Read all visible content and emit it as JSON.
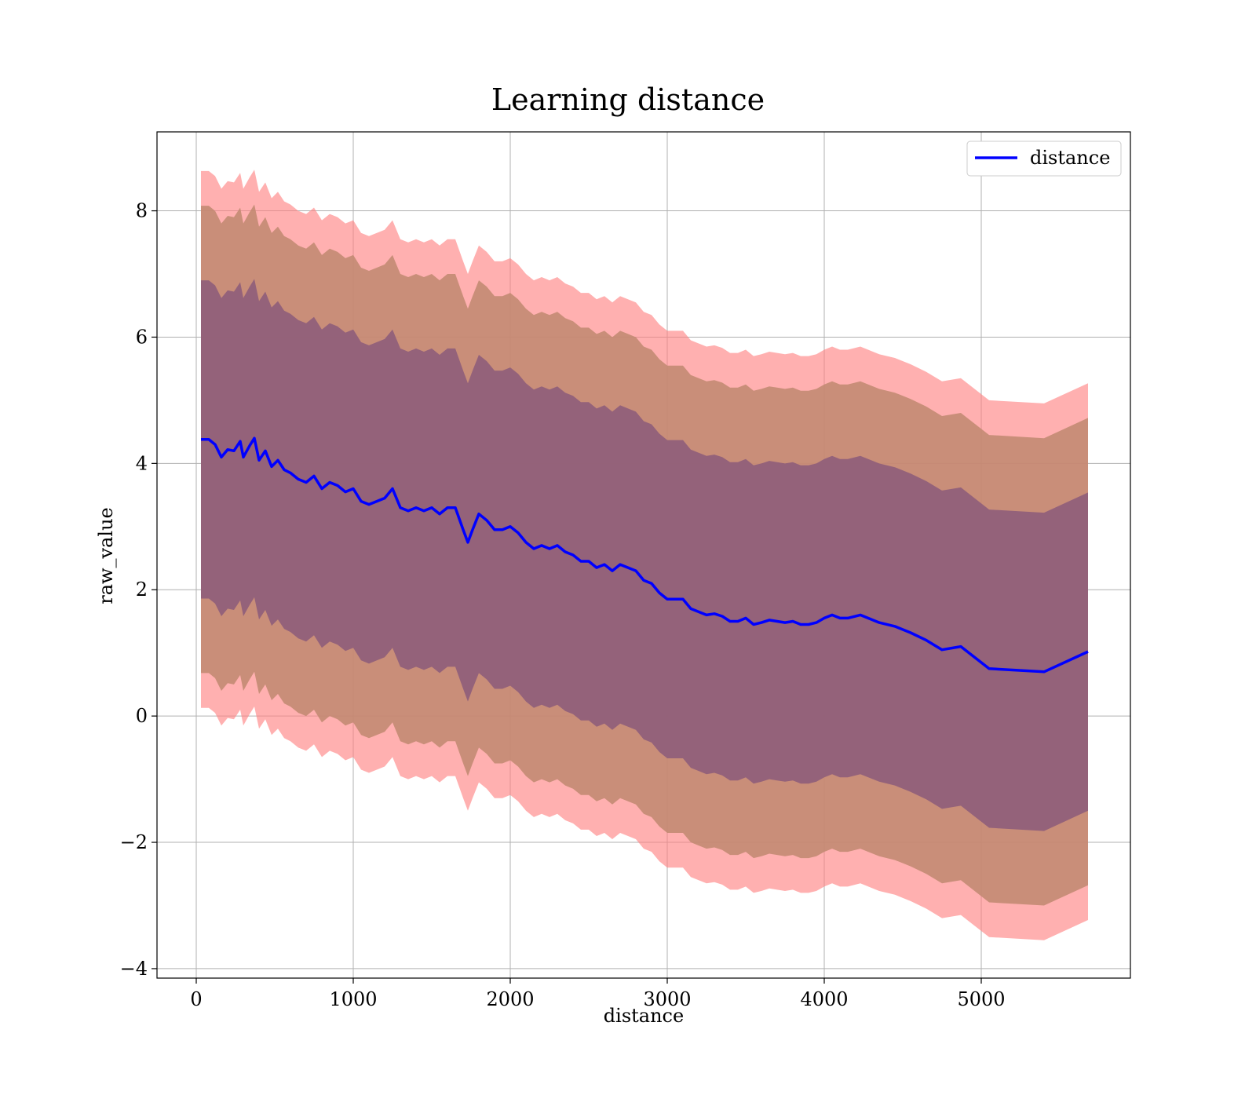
{
  "chart_data": {
    "type": "line",
    "title": "Learning distance",
    "xlabel": "distance",
    "ylabel": "raw_value",
    "xlim": [
      -250,
      5950
    ],
    "ylim": [
      -4.15,
      9.25
    ],
    "x_ticks": [
      0,
      1000,
      2000,
      3000,
      4000,
      5000
    ],
    "y_ticks": [
      -4,
      -2,
      0,
      2,
      4,
      6,
      8
    ],
    "y_tick_labels": [
      "−4",
      "−2",
      "0",
      "2",
      "4",
      "6",
      "8"
    ],
    "grid": true,
    "legend_position": "top-right",
    "series": [
      {
        "name": "distance",
        "color": "#0000ff",
        "x": [
          30,
          80,
          120,
          160,
          200,
          240,
          280,
          300,
          340,
          370,
          400,
          440,
          480,
          520,
          560,
          600,
          650,
          700,
          750,
          800,
          850,
          900,
          950,
          1000,
          1050,
          1100,
          1150,
          1200,
          1250,
          1300,
          1350,
          1400,
          1450,
          1500,
          1550,
          1600,
          1650,
          1700,
          1730,
          1760,
          1800,
          1850,
          1900,
          1950,
          2000,
          2050,
          2100,
          2150,
          2200,
          2250,
          2300,
          2350,
          2400,
          2450,
          2500,
          2550,
          2600,
          2650,
          2700,
          2750,
          2800,
          2850,
          2900,
          2950,
          3000,
          3050,
          3100,
          3150,
          3200,
          3250,
          3300,
          3350,
          3400,
          3450,
          3500,
          3550,
          3600,
          3650,
          3700,
          3750,
          3800,
          3850,
          3900,
          3950,
          4000,
          4050,
          4100,
          4150,
          4230,
          4350,
          4450,
          4550,
          4650,
          4750,
          4870,
          5050,
          5400,
          5680
        ]
      }
    ],
    "mean": [
      4.38,
      4.38,
      4.3,
      4.1,
      4.22,
      4.2,
      4.35,
      4.1,
      4.28,
      4.4,
      4.05,
      4.2,
      3.95,
      4.05,
      3.9,
      3.85,
      3.75,
      3.7,
      3.8,
      3.6,
      3.7,
      3.65,
      3.55,
      3.6,
      3.4,
      3.35,
      3.4,
      3.45,
      3.6,
      3.3,
      3.25,
      3.3,
      3.25,
      3.3,
      3.2,
      3.3,
      3.3,
      2.95,
      2.75,
      2.95,
      3.2,
      3.1,
      2.95,
      2.95,
      3.0,
      2.9,
      2.75,
      2.65,
      2.7,
      2.65,
      2.7,
      2.6,
      2.55,
      2.45,
      2.45,
      2.35,
      2.4,
      2.3,
      2.4,
      2.35,
      2.3,
      2.15,
      2.1,
      1.95,
      1.85,
      1.85,
      1.85,
      1.7,
      1.65,
      1.6,
      1.62,
      1.58,
      1.5,
      1.5,
      1.55,
      1.45,
      1.48,
      1.52,
      1.5,
      1.48,
      1.5,
      1.45,
      1.45,
      1.48,
      1.55,
      1.6,
      1.55,
      1.55,
      1.6,
      1.48,
      1.42,
      1.32,
      1.2,
      1.05,
      1.1,
      0.75,
      0.7,
      1.02
    ],
    "bands": [
      {
        "sigma": 1,
        "half_width": 2.52,
        "color": "#8b5a7a",
        "alpha": 0.85
      },
      {
        "sigma": 2,
        "half_width": 3.7,
        "color": "#c08870",
        "alpha": 0.85
      },
      {
        "sigma": 3,
        "half_width": 4.25,
        "color": "#ff8080",
        "alpha": 0.62
      }
    ]
  }
}
